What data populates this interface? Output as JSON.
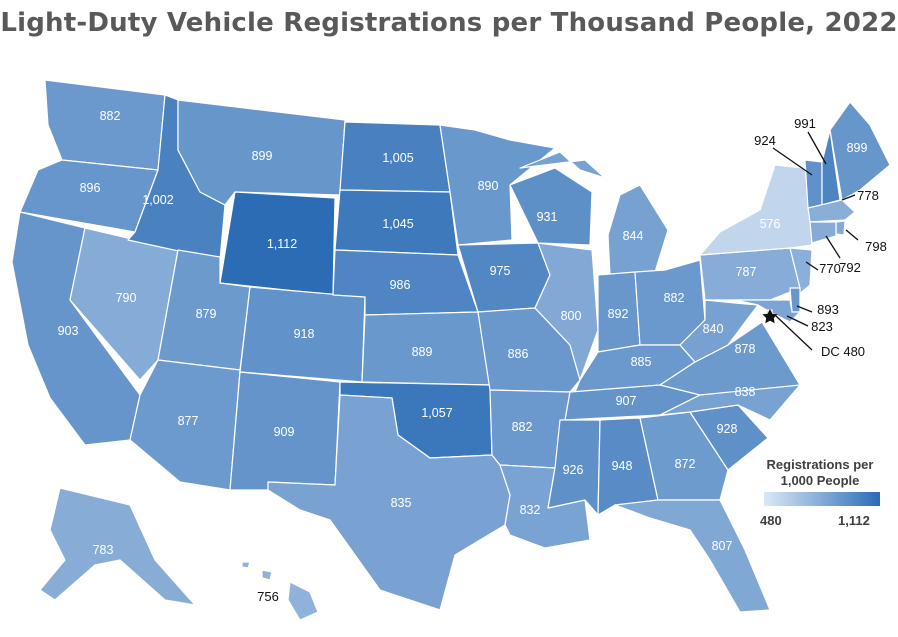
{
  "title": "Light-Duty Vehicle Registrations per Thousand People, 2022",
  "legend": {
    "title": "Registrations per 1,000 People",
    "min_label": "480",
    "max_label": "1,112",
    "min_color": "#dce8f7",
    "max_color": "#2b6cb5"
  },
  "chart_data": {
    "type": "choropleth",
    "title": "Light-Duty Vehicle Registrations per Thousand People, 2022",
    "units": "Registrations per 1,000 People",
    "range": [
      480,
      1112
    ],
    "values": {
      "WA": 882,
      "OR": 896,
      "CA": 903,
      "NV": 790,
      "ID": 1002,
      "MT": 899,
      "WY": 1112,
      "UT": 879,
      "AZ": 877,
      "CO": 918,
      "NM": 909,
      "ND": 1005,
      "SD": 1045,
      "NE": 986,
      "KS": 889,
      "OK": 1057,
      "TX": 835,
      "MN": 890,
      "IA": 975,
      "MO": 886,
      "AR": 882,
      "LA": 832,
      "WI": 931,
      "IL": 800,
      "MI": 844,
      "IN": 892,
      "OH": 882,
      "KY": 885,
      "TN": 907,
      "MS": 926,
      "AL": 948,
      "GA": 872,
      "FL": 807,
      "SC": 928,
      "NC": 838,
      "VA": 878,
      "WV": 840,
      "PA": 787,
      "NY": 576,
      "VT": 924,
      "NH": 991,
      "ME": 899,
      "MA": 778,
      "RI": 798,
      "CT": 792,
      "NJ": 770,
      "DE": 893,
      "MD": 823,
      "DC": 480,
      "AK": 783,
      "HI": 756
    },
    "labels": {
      "WA": "882",
      "OR": "896",
      "CA": "903",
      "NV": "790",
      "ID": "1,002",
      "MT": "899",
      "WY": "1,112",
      "UT": "879",
      "AZ": "877",
      "CO": "918",
      "NM": "909",
      "ND": "1,005",
      "SD": "1,045",
      "NE": "986",
      "KS": "889",
      "OK": "1,057",
      "TX": "835",
      "MN": "890",
      "IA": "975",
      "MO": "886",
      "AR": "882",
      "LA": "832",
      "WI": "931",
      "IL": "800",
      "MI": "844",
      "IN": "892",
      "OH": "882",
      "KY": "885",
      "TN": "907",
      "MS": "926",
      "AL": "948",
      "GA": "872",
      "FL": "807",
      "SC": "928",
      "NC": "838",
      "VA": "878",
      "WV": "840",
      "PA": "787",
      "NY": "576",
      "VT": "924",
      "NH": "991",
      "ME": "899",
      "MA": "778",
      "RI": "798",
      "CT": "792",
      "NJ": "770",
      "DE": "893",
      "MD": "823",
      "DC": "DC 480",
      "AK": "783",
      "HI": "756"
    }
  }
}
